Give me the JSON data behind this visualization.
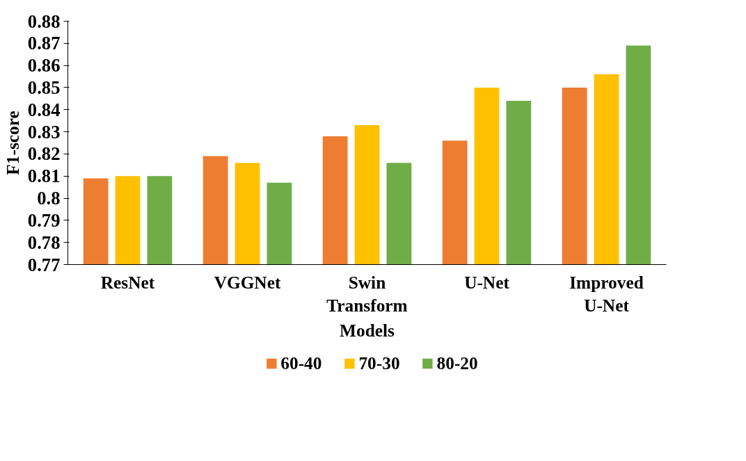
{
  "chart_data": {
    "type": "bar",
    "xlabel": "Models",
    "ylabel": "F1-score",
    "categories": [
      "ResNet",
      "VGGNet",
      "Swin Transform",
      "U-Net",
      "Improved U-Net"
    ],
    "series": [
      {
        "name": "60-40",
        "color": "#ed7d31",
        "values": [
          0.809,
          0.819,
          0.828,
          0.826,
          0.85
        ]
      },
      {
        "name": "70-30",
        "color": "#ffc000",
        "values": [
          0.81,
          0.816,
          0.833,
          0.85,
          0.856
        ]
      },
      {
        "name": "80-20",
        "color": "#70ad47",
        "values": [
          0.81,
          0.807,
          0.816,
          0.844,
          0.869
        ]
      }
    ],
    "ylim": [
      0.77,
      0.88
    ],
    "yticks": [
      0.77,
      0.78,
      0.79,
      0.8,
      0.81,
      0.82,
      0.83,
      0.84,
      0.85,
      0.86,
      0.87,
      0.88
    ],
    "grid": false,
    "legend": "bottom"
  }
}
